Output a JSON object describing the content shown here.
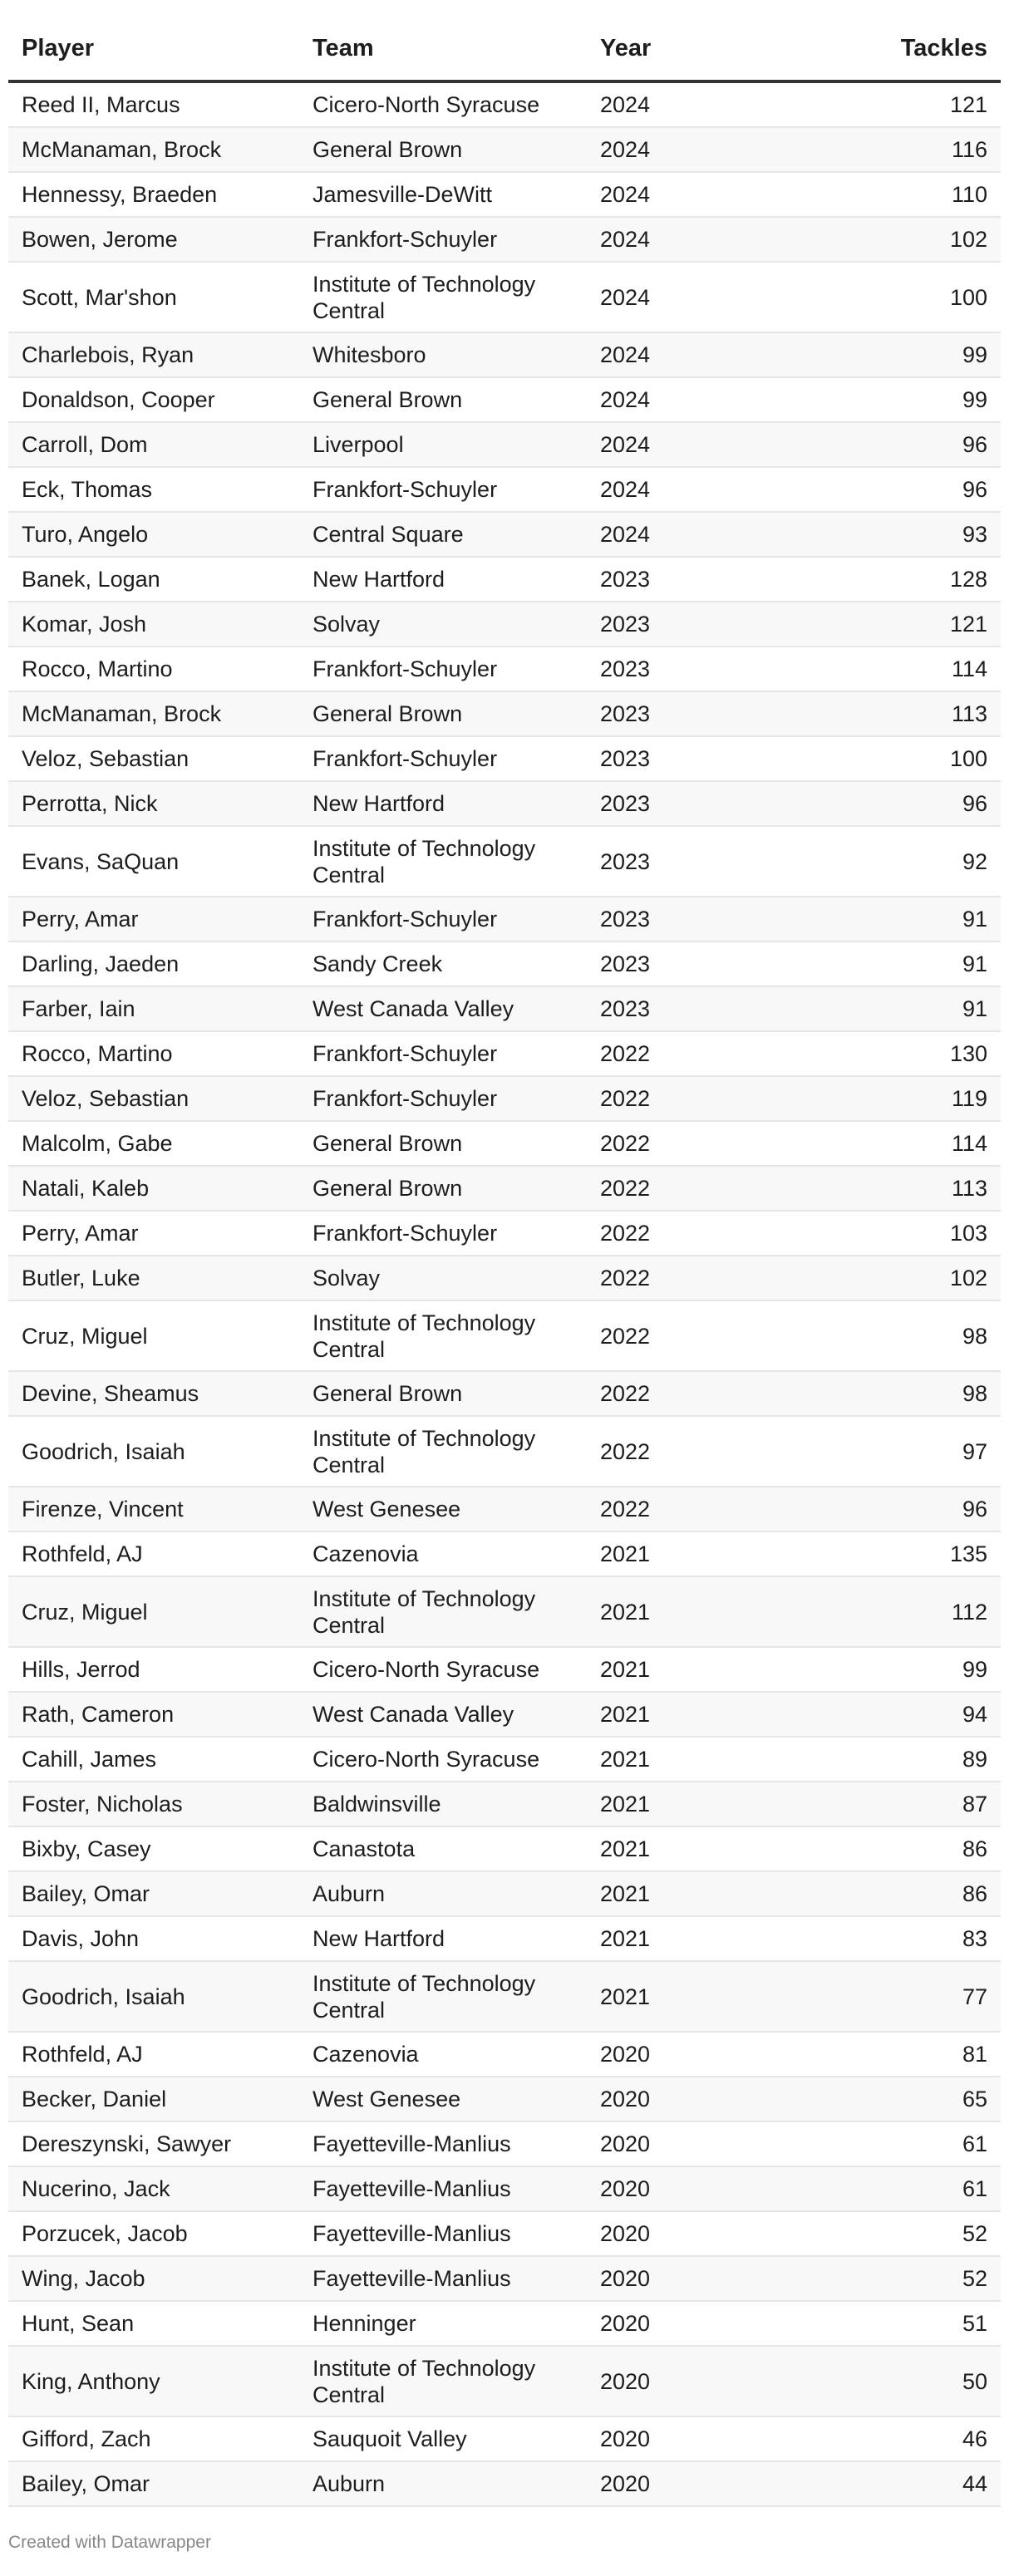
{
  "header": {
    "player": "Player",
    "team": "Team",
    "year": "Year",
    "tackles": "Tackles"
  },
  "rows": [
    {
      "player": "Reed II, Marcus",
      "team": "Cicero-North Syracuse",
      "year": "2024",
      "tackles": "121"
    },
    {
      "player": "McManaman, Brock",
      "team": "General Brown",
      "year": "2024",
      "tackles": "116"
    },
    {
      "player": "Hennessy, Braeden",
      "team": "Jamesville-DeWitt",
      "year": "2024",
      "tackles": "110"
    },
    {
      "player": "Bowen, Jerome",
      "team": "Frankfort-Schuyler",
      "year": "2024",
      "tackles": "102"
    },
    {
      "player": "Scott, Mar'shon",
      "team": "Institute of Technology Central",
      "year": "2024",
      "tackles": "100"
    },
    {
      "player": "Charlebois, Ryan",
      "team": "Whitesboro",
      "year": "2024",
      "tackles": "99"
    },
    {
      "player": "Donaldson, Cooper",
      "team": "General Brown",
      "year": "2024",
      "tackles": "99"
    },
    {
      "player": "Carroll, Dom",
      "team": "Liverpool",
      "year": "2024",
      "tackles": "96"
    },
    {
      "player": "Eck, Thomas",
      "team": "Frankfort-Schuyler",
      "year": "2024",
      "tackles": "96"
    },
    {
      "player": "Turo, Angelo",
      "team": "Central Square",
      "year": "2024",
      "tackles": "93"
    },
    {
      "player": "Banek, Logan",
      "team": "New Hartford",
      "year": "2023",
      "tackles": "128"
    },
    {
      "player": "Komar, Josh",
      "team": "Solvay",
      "year": "2023",
      "tackles": "121"
    },
    {
      "player": "Rocco, Martino",
      "team": "Frankfort-Schuyler",
      "year": "2023",
      "tackles": "114"
    },
    {
      "player": "McManaman, Brock",
      "team": "General Brown",
      "year": "2023",
      "tackles": "113"
    },
    {
      "player": "Veloz, Sebastian",
      "team": "Frankfort-Schuyler",
      "year": "2023",
      "tackles": "100"
    },
    {
      "player": "Perrotta, Nick",
      "team": "New Hartford",
      "year": "2023",
      "tackles": "96"
    },
    {
      "player": "Evans, SaQuan",
      "team": "Institute of Technology Central",
      "year": "2023",
      "tackles": "92"
    },
    {
      "player": "Perry, Amar",
      "team": "Frankfort-Schuyler",
      "year": "2023",
      "tackles": "91"
    },
    {
      "player": "Darling, Jaeden",
      "team": "Sandy Creek",
      "year": "2023",
      "tackles": "91"
    },
    {
      "player": "Farber, Iain",
      "team": "West Canada Valley",
      "year": "2023",
      "tackles": "91"
    },
    {
      "player": "Rocco, Martino",
      "team": "Frankfort-Schuyler",
      "year": "2022",
      "tackles": "130"
    },
    {
      "player": "Veloz, Sebastian",
      "team": "Frankfort-Schuyler",
      "year": "2022",
      "tackles": "119"
    },
    {
      "player": "Malcolm, Gabe",
      "team": "General Brown",
      "year": "2022",
      "tackles": "114"
    },
    {
      "player": "Natali, Kaleb",
      "team": "General Brown",
      "year": "2022",
      "tackles": "113"
    },
    {
      "player": "Perry, Amar",
      "team": "Frankfort-Schuyler",
      "year": "2022",
      "tackles": "103"
    },
    {
      "player": "Butler, Luke",
      "team": "Solvay",
      "year": "2022",
      "tackles": "102"
    },
    {
      "player": "Cruz, Miguel",
      "team": "Institute of Technology Central",
      "year": "2022",
      "tackles": "98"
    },
    {
      "player": "Devine, Sheamus",
      "team": "General Brown",
      "year": "2022",
      "tackles": "98"
    },
    {
      "player": "Goodrich, Isaiah",
      "team": "Institute of Technology Central",
      "year": "2022",
      "tackles": "97"
    },
    {
      "player": "Firenze, Vincent",
      "team": "West Genesee",
      "year": "2022",
      "tackles": "96"
    },
    {
      "player": "Rothfeld, AJ",
      "team": "Cazenovia",
      "year": "2021",
      "tackles": "135"
    },
    {
      "player": "Cruz, Miguel",
      "team": "Institute of Technology Central",
      "year": "2021",
      "tackles": "112"
    },
    {
      "player": "Hills, Jerrod",
      "team": "Cicero-North Syracuse",
      "year": "2021",
      "tackles": "99"
    },
    {
      "player": "Rath, Cameron",
      "team": "West Canada Valley",
      "year": "2021",
      "tackles": "94"
    },
    {
      "player": "Cahill, James",
      "team": "Cicero-North Syracuse",
      "year": "2021",
      "tackles": "89"
    },
    {
      "player": "Foster, Nicholas",
      "team": "Baldwinsville",
      "year": "2021",
      "tackles": "87"
    },
    {
      "player": "Bixby, Casey",
      "team": "Canastota",
      "year": "2021",
      "tackles": "86"
    },
    {
      "player": "Bailey, Omar",
      "team": "Auburn",
      "year": "2021",
      "tackles": "86"
    },
    {
      "player": "Davis, John",
      "team": "New Hartford",
      "year": "2021",
      "tackles": "83"
    },
    {
      "player": "Goodrich, Isaiah",
      "team": "Institute of Technology Central",
      "year": "2021",
      "tackles": "77"
    },
    {
      "player": "Rothfeld, AJ",
      "team": "Cazenovia",
      "year": "2020",
      "tackles": "81"
    },
    {
      "player": "Becker, Daniel",
      "team": "West Genesee",
      "year": "2020",
      "tackles": "65"
    },
    {
      "player": "Dereszynski, Sawyer",
      "team": "Fayetteville-Manlius",
      "year": "2020",
      "tackles": "61"
    },
    {
      "player": "Nucerino, Jack",
      "team": "Fayetteville-Manlius",
      "year": "2020",
      "tackles": "61"
    },
    {
      "player": "Porzucek, Jacob",
      "team": "Fayetteville-Manlius",
      "year": "2020",
      "tackles": "52"
    },
    {
      "player": "Wing, Jacob",
      "team": "Fayetteville-Manlius",
      "year": "2020",
      "tackles": "52"
    },
    {
      "player": "Hunt, Sean",
      "team": "Henninger",
      "year": "2020",
      "tackles": "51"
    },
    {
      "player": "King, Anthony",
      "team": "Institute of Technology Central",
      "year": "2020",
      "tackles": "50"
    },
    {
      "player": "Gifford, Zach",
      "team": "Sauquoit Valley",
      "year": "2020",
      "tackles": "46"
    },
    {
      "player": "Bailey, Omar",
      "team": "Auburn",
      "year": "2020",
      "tackles": "44"
    }
  ],
  "footer": "Created with Datawrapper"
}
